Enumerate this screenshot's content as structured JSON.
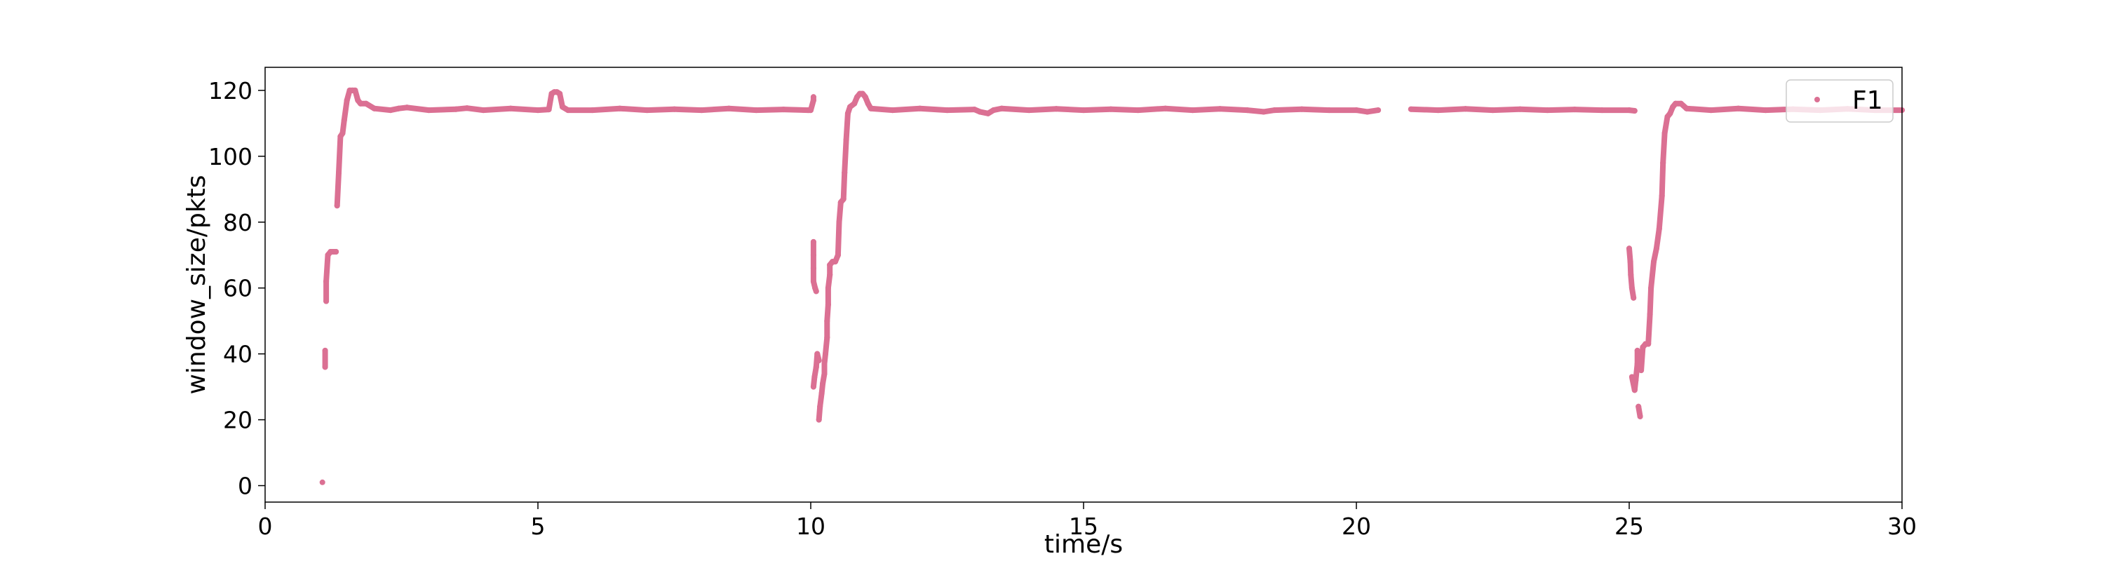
{
  "chart_data": {
    "type": "scatter",
    "xlabel": "time/s",
    "ylabel": "window_size/pkts",
    "xlim": [
      0,
      30
    ],
    "ylim": [
      -5,
      127
    ],
    "xticks": [
      0,
      5,
      10,
      15,
      20,
      25,
      30
    ],
    "yticks": [
      0,
      20,
      40,
      60,
      80,
      100,
      120
    ],
    "grid": false,
    "legend_position": "top-right",
    "series": [
      {
        "name": "F1",
        "color": "#db7093",
        "points": [
          [
            1.05,
            1
          ],
          [
            1.1,
            36
          ],
          [
            1.1,
            41
          ],
          [
            1.12,
            56
          ],
          [
            1.12,
            62
          ],
          [
            1.15,
            70
          ],
          [
            1.2,
            71
          ],
          [
            1.3,
            71
          ],
          [
            1.32,
            85
          ],
          [
            1.35,
            95
          ],
          [
            1.38,
            106
          ],
          [
            1.42,
            107
          ],
          [
            1.45,
            111
          ],
          [
            1.5,
            117
          ],
          [
            1.55,
            120
          ],
          [
            1.6,
            120
          ],
          [
            1.65,
            120
          ],
          [
            1.7,
            117
          ],
          [
            1.75,
            116
          ],
          [
            1.85,
            116
          ],
          [
            2.0,
            114.5
          ],
          [
            2.3,
            114
          ],
          [
            2.45,
            114.5
          ],
          [
            2.6,
            114.8
          ],
          [
            3.0,
            114
          ],
          [
            3.5,
            114.3
          ],
          [
            3.7,
            114.6
          ],
          [
            4.0,
            114
          ],
          [
            4.5,
            114.5
          ],
          [
            5.0,
            114
          ],
          [
            5.2,
            114.2
          ],
          [
            5.25,
            119
          ],
          [
            5.3,
            119.5
          ],
          [
            5.35,
            119.5
          ],
          [
            5.4,
            119
          ],
          [
            5.45,
            115
          ],
          [
            5.55,
            114
          ],
          [
            6.0,
            114
          ],
          [
            6.5,
            114.5
          ],
          [
            7.0,
            114
          ],
          [
            7.5,
            114.3
          ],
          [
            8.0,
            114
          ],
          [
            8.5,
            114.5
          ],
          [
            9.0,
            114
          ],
          [
            9.5,
            114.2
          ],
          [
            9.95,
            114
          ],
          [
            10.0,
            114
          ],
          [
            10.05,
            117
          ],
          [
            10.05,
            118
          ],
          [
            10.05,
            74
          ],
          [
            10.05,
            70
          ],
          [
            10.05,
            66
          ],
          [
            10.05,
            62
          ],
          [
            10.08,
            60
          ],
          [
            10.1,
            59
          ],
          [
            10.05,
            30
          ],
          [
            10.07,
            33
          ],
          [
            10.1,
            36
          ],
          [
            10.12,
            40
          ],
          [
            10.15,
            38
          ],
          [
            10.15,
            20
          ],
          [
            10.17,
            24
          ],
          [
            10.2,
            28
          ],
          [
            10.22,
            31
          ],
          [
            10.25,
            34
          ],
          [
            10.25,
            37
          ],
          [
            10.27,
            40
          ],
          [
            10.3,
            45
          ],
          [
            10.3,
            50
          ],
          [
            10.32,
            55
          ],
          [
            10.32,
            60
          ],
          [
            10.35,
            64
          ],
          [
            10.35,
            67
          ],
          [
            10.4,
            68
          ],
          [
            10.45,
            68
          ],
          [
            10.5,
            70
          ],
          [
            10.52,
            80
          ],
          [
            10.55,
            86
          ],
          [
            10.6,
            87
          ],
          [
            10.62,
            95
          ],
          [
            10.65,
            105
          ],
          [
            10.68,
            113
          ],
          [
            10.72,
            115
          ],
          [
            10.8,
            116
          ],
          [
            10.85,
            118
          ],
          [
            10.9,
            119
          ],
          [
            10.95,
            119
          ],
          [
            11.0,
            118
          ],
          [
            11.05,
            116
          ],
          [
            11.1,
            114.5
          ],
          [
            11.5,
            114
          ],
          [
            12.0,
            114.5
          ],
          [
            12.5,
            114
          ],
          [
            13.0,
            114.2
          ],
          [
            13.1,
            113.5
          ],
          [
            13.25,
            113
          ],
          [
            13.35,
            114
          ],
          [
            13.5,
            114.5
          ],
          [
            14.0,
            114
          ],
          [
            14.5,
            114.4
          ],
          [
            15.0,
            114
          ],
          [
            15.5,
            114.3
          ],
          [
            16.0,
            114
          ],
          [
            16.5,
            114.5
          ],
          [
            17.0,
            114
          ],
          [
            17.5,
            114.4
          ],
          [
            18.0,
            114
          ],
          [
            18.3,
            113.5
          ],
          [
            18.5,
            114
          ],
          [
            19.0,
            114.3
          ],
          [
            19.5,
            114
          ],
          [
            20.0,
            114
          ],
          [
            20.2,
            113.5
          ],
          [
            20.4,
            114
          ],
          [
            21.0,
            114.3
          ],
          [
            21.5,
            114
          ],
          [
            22.0,
            114.4
          ],
          [
            22.5,
            114
          ],
          [
            23.0,
            114.3
          ],
          [
            23.5,
            114
          ],
          [
            24.0,
            114.2
          ],
          [
            24.5,
            114
          ],
          [
            25.0,
            114
          ],
          [
            25.1,
            113.8
          ],
          [
            25.0,
            72
          ],
          [
            25.02,
            68
          ],
          [
            25.03,
            64
          ],
          [
            25.05,
            60
          ],
          [
            25.08,
            57
          ],
          [
            25.05,
            33
          ],
          [
            25.1,
            29
          ],
          [
            25.12,
            32
          ],
          [
            25.15,
            37
          ],
          [
            25.15,
            41
          ],
          [
            25.17,
            24
          ],
          [
            25.2,
            21
          ],
          [
            25.22,
            35
          ],
          [
            25.25,
            42
          ],
          [
            25.3,
            43
          ],
          [
            25.35,
            43
          ],
          [
            25.38,
            52
          ],
          [
            25.4,
            60
          ],
          [
            25.45,
            68
          ],
          [
            25.5,
            72
          ],
          [
            25.55,
            78
          ],
          [
            25.6,
            88
          ],
          [
            25.62,
            98
          ],
          [
            25.65,
            107
          ],
          [
            25.7,
            112
          ],
          [
            25.75,
            113
          ],
          [
            25.8,
            115
          ],
          [
            25.85,
            116
          ],
          [
            25.95,
            116
          ],
          [
            26.05,
            114.5
          ],
          [
            26.5,
            114
          ],
          [
            27.0,
            114.5
          ],
          [
            27.5,
            114
          ],
          [
            28.0,
            114.3
          ],
          [
            28.5,
            114
          ],
          [
            29.0,
            114.4
          ],
          [
            29.5,
            114
          ],
          [
            30.0,
            114
          ]
        ]
      }
    ]
  }
}
